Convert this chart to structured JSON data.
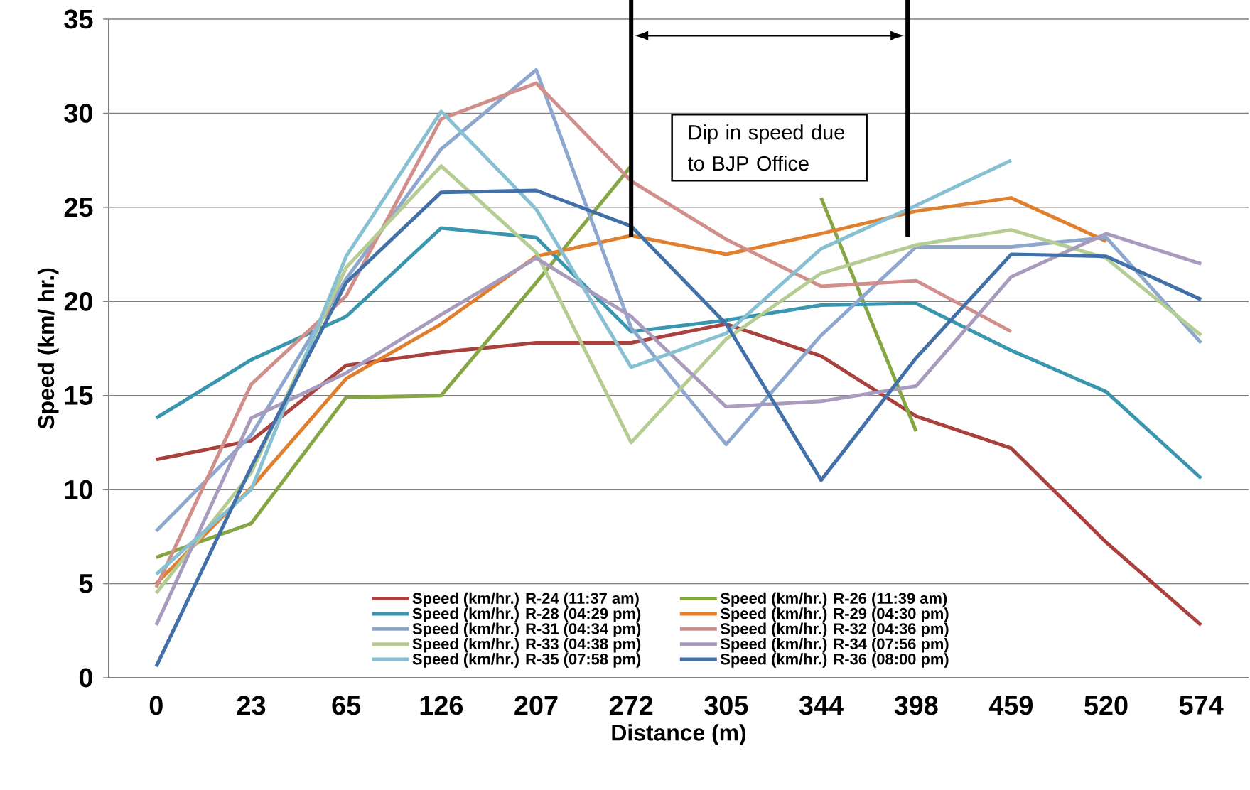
{
  "chart_data": {
    "type": "line",
    "xlabel": "Distance (m)",
    "ylabel": "Speed (km/ hr.)",
    "categories": [
      "0",
      "23",
      "65",
      "126",
      "207",
      "272",
      "305",
      "344",
      "398",
      "459",
      "520",
      "574"
    ],
    "ylim": [
      0,
      35
    ],
    "yticks": [
      0,
      5,
      10,
      15,
      20,
      25,
      30,
      35
    ],
    "grid": "y",
    "legend": "bottom",
    "series": [
      {
        "name": "Speed (km/hr.) R-24 (11:37 am)",
        "color": "#a9413e",
        "values": [
          11.6,
          12.6,
          16.6,
          17.3,
          17.8,
          17.8,
          18.8,
          17.1,
          13.9,
          12.2,
          7.2,
          2.8
        ]
      },
      {
        "name": "Speed (km/hr.) R-26 (11:39 am)",
        "color": "#86a543",
        "values": [
          6.4,
          8.2,
          14.9,
          15.0,
          21.0,
          27.2,
          null,
          25.5,
          13.1,
          null,
          null,
          null
        ]
      },
      {
        "name": "Speed (km/hr.) R-28 (04:29 pm)",
        "color": "#3a96ae",
        "values": [
          13.8,
          16.9,
          19.2,
          23.9,
          23.4,
          18.4,
          19.0,
          19.8,
          19.9,
          17.4,
          15.2,
          10.6
        ]
      },
      {
        "name": "Speed (km/hr.) R-29 (04:30 pm)",
        "color": "#e0802e",
        "values": [
          5.0,
          10.1,
          15.9,
          18.8,
          22.4,
          23.5,
          22.5,
          23.6,
          24.8,
          25.5,
          23.2,
          null
        ]
      },
      {
        "name": "Speed (km/hr.) R-31 (04:34 pm)",
        "color": "#8ea7cf",
        "values": [
          7.8,
          12.9,
          21.2,
          28.1,
          32.3,
          18.6,
          12.4,
          18.2,
          22.9,
          22.9,
          23.4,
          17.8
        ]
      },
      {
        "name": "Speed (km/hr.) R-32 (04:36 pm)",
        "color": "#d18f8c",
        "values": [
          4.8,
          15.6,
          20.3,
          29.7,
          31.6,
          26.4,
          23.3,
          20.8,
          21.1,
          18.4,
          null,
          null
        ]
      },
      {
        "name": "Speed (km/hr.) R-33 (04:38 pm)",
        "color": "#b5cd92",
        "values": [
          4.5,
          10.9,
          21.8,
          27.2,
          22.6,
          12.5,
          18.0,
          21.5,
          23.0,
          23.8,
          22.3,
          18.2
        ]
      },
      {
        "name": "Speed (km/hr.) R-34 (07:56 pm)",
        "color": "#a89bbd",
        "values": [
          2.8,
          13.8,
          16.2,
          19.3,
          22.3,
          19.2,
          14.4,
          14.7,
          15.5,
          21.3,
          23.6,
          22.0
        ]
      },
      {
        "name": "Speed (km/hr.) R-35 (07:58 pm)",
        "color": "#88c0d3",
        "values": [
          5.5,
          10.0,
          22.4,
          30.1,
          24.9,
          16.5,
          18.3,
          22.8,
          25.1,
          27.5,
          null,
          null
        ]
      },
      {
        "name": "Speed (km/hr.) R-36 (08:00 pm)",
        "color": "#4270a8",
        "values": [
          0.6,
          11.2,
          21.0,
          25.8,
          25.9,
          24.0,
          18.8,
          10.5,
          17.0,
          22.5,
          22.4,
          20.1
        ]
      }
    ],
    "bands": [
      {
        "axis": "x",
        "from": "272",
        "to": "398",
        "label": "Dip in speed due to BJP Office"
      }
    ]
  }
}
